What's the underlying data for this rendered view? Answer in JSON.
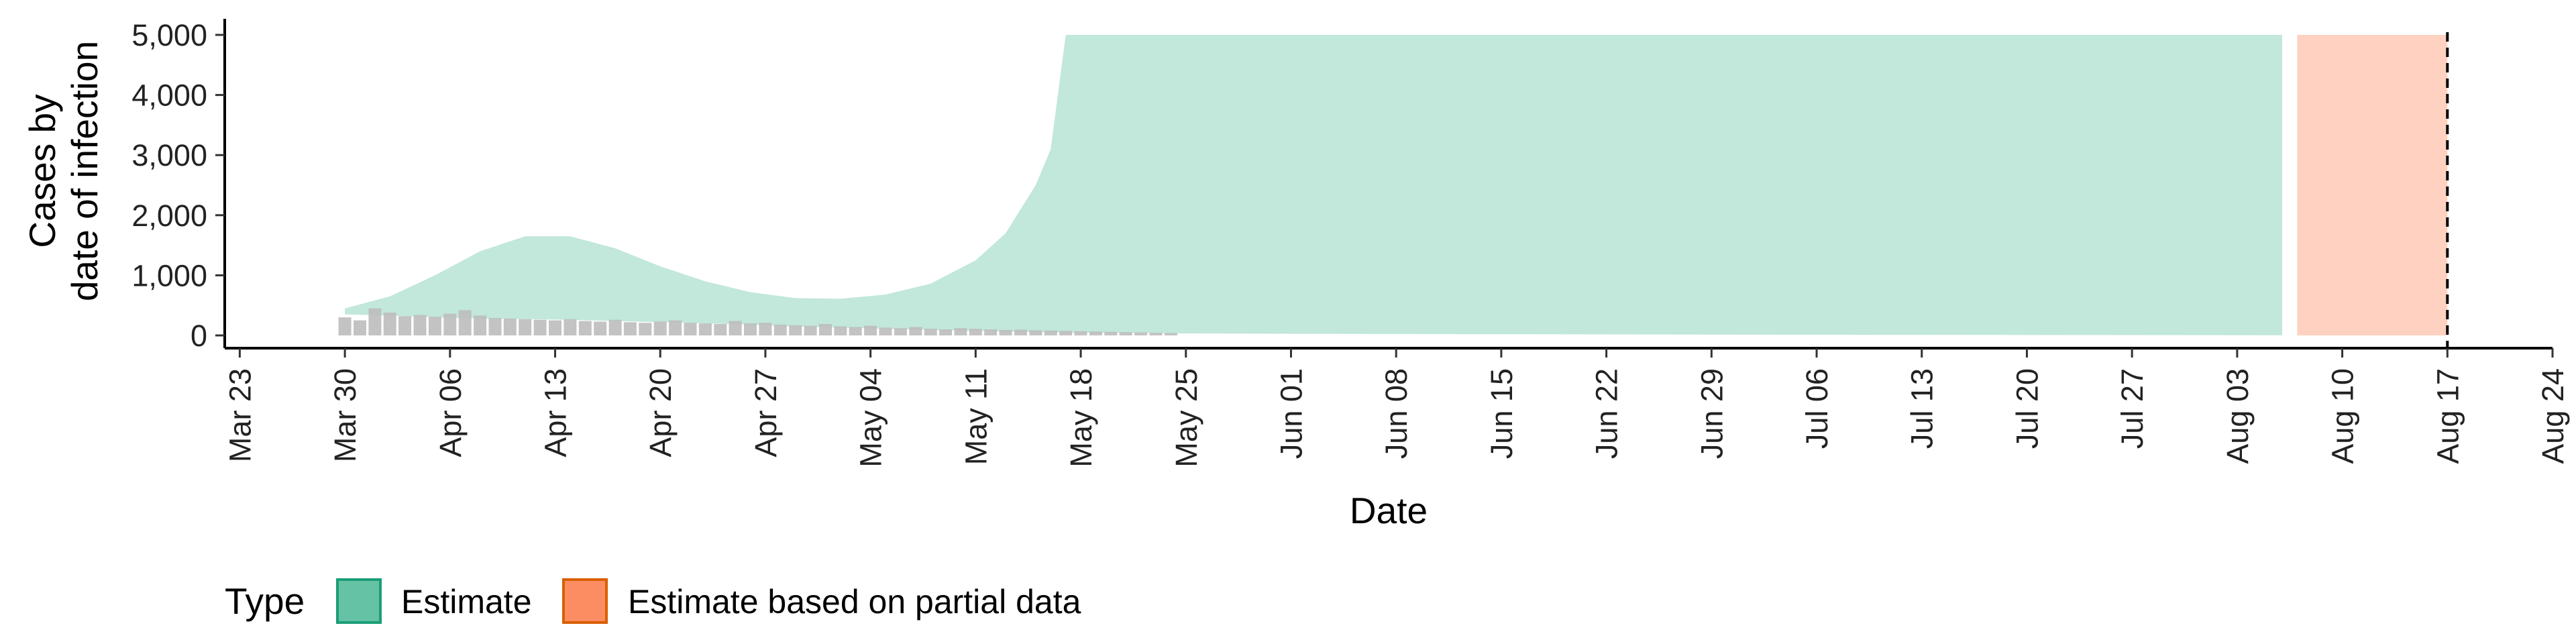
{
  "chart_data": {
    "type": "area",
    "xlabel": "Date",
    "ylabel_lines": [
      "Cases by",
      "date of infection"
    ],
    "x_range": [
      "2020-03-22",
      "2020-08-24"
    ],
    "ylim": [
      0,
      5400
    ],
    "y_ticks": [
      0,
      1000,
      2000,
      3000,
      4000,
      5000
    ],
    "y_tick_labels": [
      "0",
      "1,000",
      "2,000",
      "3,000",
      "4,000",
      "5,000"
    ],
    "x_ticks": [
      "2020-03-23",
      "2020-03-30",
      "2020-04-06",
      "2020-04-13",
      "2020-04-20",
      "2020-04-27",
      "2020-05-04",
      "2020-05-11",
      "2020-05-18",
      "2020-05-25",
      "2020-06-01",
      "2020-06-08",
      "2020-06-15",
      "2020-06-22",
      "2020-06-29",
      "2020-07-06",
      "2020-07-13",
      "2020-07-20",
      "2020-07-27",
      "2020-08-03",
      "2020-08-10",
      "2020-08-17",
      "2020-08-24"
    ],
    "x_tick_labels": [
      "Mar 23",
      "Mar 30",
      "Apr 06",
      "Apr 13",
      "Apr 20",
      "Apr 27",
      "May 04",
      "May 11",
      "May 18",
      "May 25",
      "Jun 01",
      "Jun 08",
      "Jun 15",
      "Jun 22",
      "Jun 29",
      "Jul 06",
      "Jul 13",
      "Jul 20",
      "Jul 27",
      "Aug 03",
      "Aug 10",
      "Aug 17",
      "Aug 24"
    ],
    "grid": false,
    "reference_line": {
      "date": "2020-08-17",
      "style": "dashed"
    },
    "series": [
      {
        "name": "Estimate",
        "color": "#1B9E77",
        "band": {
          "x": [
            "2020-03-30",
            "2020-04-02",
            "2020-04-05",
            "2020-04-08",
            "2020-04-11",
            "2020-04-14",
            "2020-04-17",
            "2020-04-20",
            "2020-04-23",
            "2020-04-26",
            "2020-04-29",
            "2020-05-02",
            "2020-05-05",
            "2020-05-08",
            "2020-05-11",
            "2020-05-13",
            "2020-05-15",
            "2020-05-16",
            "2020-05-17",
            "2020-05-24",
            "2020-06-01",
            "2020-06-15",
            "2020-07-01",
            "2020-07-15",
            "2020-08-01",
            "2020-08-06"
          ],
          "upper": [
            450,
            650,
            1000,
            1400,
            1650,
            1650,
            1450,
            1150,
            900,
            720,
            620,
            610,
            680,
            860,
            1250,
            1700,
            2500,
            3100,
            5000,
            5000,
            5000,
            5000,
            5000,
            5000,
            5000,
            5000
          ],
          "lower": [
            350,
            330,
            300,
            280,
            270,
            260,
            240,
            220,
            200,
            180,
            150,
            130,
            110,
            90,
            75,
            65,
            55,
            50,
            45,
            35,
            28,
            20,
            12,
            8,
            4,
            3
          ]
        }
      },
      {
        "name": "Estimate based on partial data",
        "color": "#D95F02",
        "band": {
          "x": [
            "2020-08-07",
            "2020-08-17"
          ],
          "upper": [
            5000,
            5000
          ],
          "lower": [
            0,
            0
          ]
        }
      }
    ],
    "bars": {
      "color": "#BDBDBD",
      "x": [
        "2020-03-30",
        "2020-03-31",
        "2020-04-01",
        "2020-04-02",
        "2020-04-03",
        "2020-04-04",
        "2020-04-05",
        "2020-04-06",
        "2020-04-07",
        "2020-04-08",
        "2020-04-09",
        "2020-04-10",
        "2020-04-11",
        "2020-04-12",
        "2020-04-13",
        "2020-04-14",
        "2020-04-15",
        "2020-04-16",
        "2020-04-17",
        "2020-04-18",
        "2020-04-19",
        "2020-04-20",
        "2020-04-21",
        "2020-04-22",
        "2020-04-23",
        "2020-04-24",
        "2020-04-25",
        "2020-04-26",
        "2020-04-27",
        "2020-04-28",
        "2020-04-29",
        "2020-04-30",
        "2020-05-01",
        "2020-05-02",
        "2020-05-03",
        "2020-05-04",
        "2020-05-05",
        "2020-05-06",
        "2020-05-07",
        "2020-05-08",
        "2020-05-09",
        "2020-05-10",
        "2020-05-11",
        "2020-05-12",
        "2020-05-13",
        "2020-05-14",
        "2020-05-15",
        "2020-05-16",
        "2020-05-17",
        "2020-05-18",
        "2020-05-19",
        "2020-05-20",
        "2020-05-21",
        "2020-05-22",
        "2020-05-23",
        "2020-05-24"
      ],
      "values": [
        300,
        250,
        450,
        380,
        320,
        340,
        310,
        360,
        420,
        330,
        290,
        280,
        270,
        260,
        250,
        270,
        240,
        230,
        260,
        220,
        210,
        230,
        250,
        210,
        200,
        190,
        240,
        200,
        210,
        180,
        170,
        160,
        190,
        150,
        140,
        160,
        130,
        120,
        140,
        110,
        100,
        120,
        110,
        100,
        90,
        95,
        85,
        80,
        75,
        70,
        65,
        60,
        55,
        50,
        45,
        40
      ]
    }
  },
  "legend": {
    "title": "Type",
    "items": [
      {
        "label": "Estimate",
        "fill": "#66C2A5",
        "stroke": "#1B9E77"
      },
      {
        "label": "Estimate based on partial data",
        "fill": "#FC8D62",
        "stroke": "#D95F02"
      }
    ]
  }
}
